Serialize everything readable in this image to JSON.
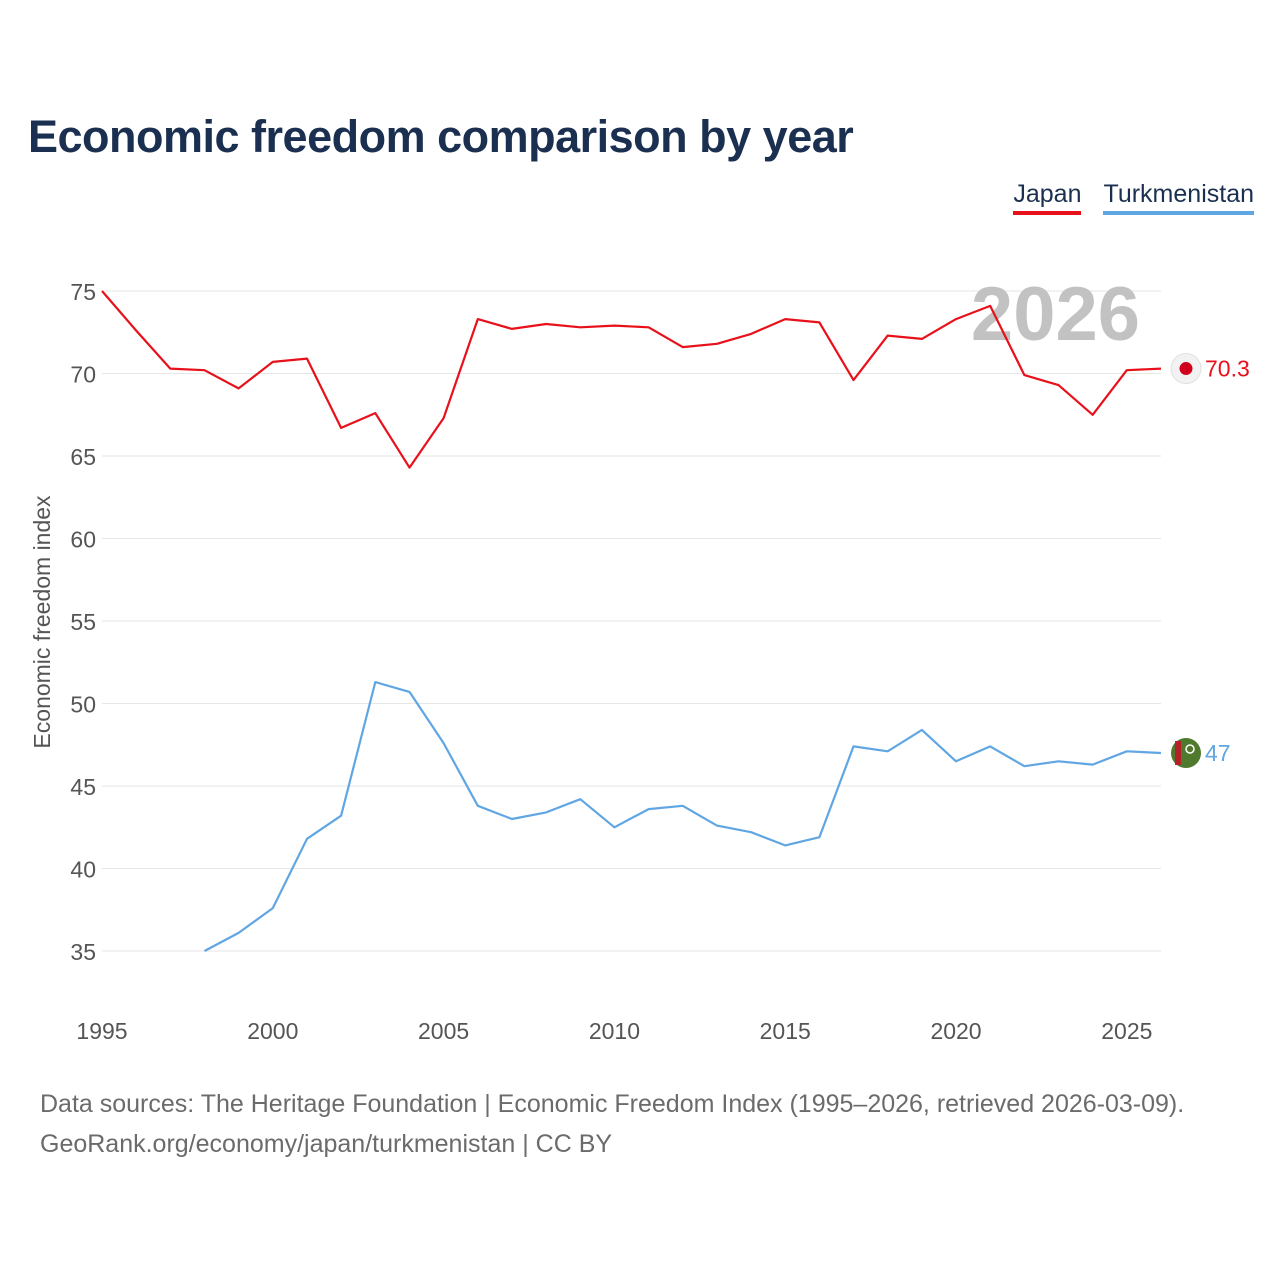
{
  "chart_data": {
    "type": "line",
    "title": "Economic freedom comparison by year",
    "ylabel": "Economic freedom index",
    "xlabel": "",
    "xlim": [
      1995,
      2026
    ],
    "ylim": [
      32,
      77
    ],
    "y_ticks": [
      35,
      40,
      45,
      50,
      55,
      60,
      65,
      70,
      75
    ],
    "x_ticks": [
      1995,
      2000,
      2005,
      2010,
      2015,
      2020,
      2025
    ],
    "current_year_label": "2026",
    "legend_position": "top-right",
    "series": [
      {
        "name": "Japan",
        "color": "#e8111b",
        "end_label": "70.3",
        "points": [
          [
            1995,
            75.0
          ],
          [
            1996,
            72.6
          ],
          [
            1997,
            70.3
          ],
          [
            1998,
            70.2
          ],
          [
            1999,
            69.1
          ],
          [
            2000,
            70.7
          ],
          [
            2001,
            70.9
          ],
          [
            2002,
            66.7
          ],
          [
            2003,
            67.6
          ],
          [
            2004,
            64.3
          ],
          [
            2005,
            67.3
          ],
          [
            2006,
            73.3
          ],
          [
            2007,
            72.7
          ],
          [
            2008,
            73.0
          ],
          [
            2009,
            72.8
          ],
          [
            2010,
            72.9
          ],
          [
            2011,
            72.8
          ],
          [
            2012,
            71.6
          ],
          [
            2013,
            71.8
          ],
          [
            2014,
            72.4
          ],
          [
            2015,
            73.3
          ],
          [
            2016,
            73.1
          ],
          [
            2017,
            69.6
          ],
          [
            2018,
            72.3
          ],
          [
            2019,
            72.1
          ],
          [
            2020,
            73.3
          ],
          [
            2021,
            74.1
          ],
          [
            2022,
            69.9
          ],
          [
            2023,
            69.3
          ],
          [
            2024,
            67.5
          ],
          [
            2025,
            70.2
          ],
          [
            2026,
            70.3
          ]
        ]
      },
      {
        "name": "Turkmenistan",
        "color": "#5fa6e3",
        "end_label": "47",
        "points": [
          [
            1998,
            35.0
          ],
          [
            1999,
            36.1
          ],
          [
            2000,
            37.6
          ],
          [
            2001,
            41.8
          ],
          [
            2002,
            43.2
          ],
          [
            2003,
            51.3
          ],
          [
            2004,
            50.7
          ],
          [
            2005,
            47.6
          ],
          [
            2006,
            43.8
          ],
          [
            2007,
            43.0
          ],
          [
            2008,
            43.4
          ],
          [
            2009,
            44.2
          ],
          [
            2010,
            42.5
          ],
          [
            2011,
            43.6
          ],
          [
            2012,
            43.8
          ],
          [
            2013,
            42.6
          ],
          [
            2014,
            42.2
          ],
          [
            2015,
            41.4
          ],
          [
            2016,
            41.9
          ],
          [
            2017,
            47.4
          ],
          [
            2018,
            47.1
          ],
          [
            2019,
            48.4
          ],
          [
            2020,
            46.5
          ],
          [
            2021,
            47.4
          ],
          [
            2022,
            46.2
          ],
          [
            2023,
            46.5
          ],
          [
            2024,
            46.3
          ],
          [
            2025,
            47.1
          ],
          [
            2026,
            47.0
          ]
        ]
      }
    ]
  },
  "footer": {
    "line1": "Data sources: The Heritage Foundation | Economic Freedom Index (1995–2026, retrieved 2026-03-09).",
    "line2": "GeoRank.org/economy/japan/turkmenistan | CC BY"
  }
}
